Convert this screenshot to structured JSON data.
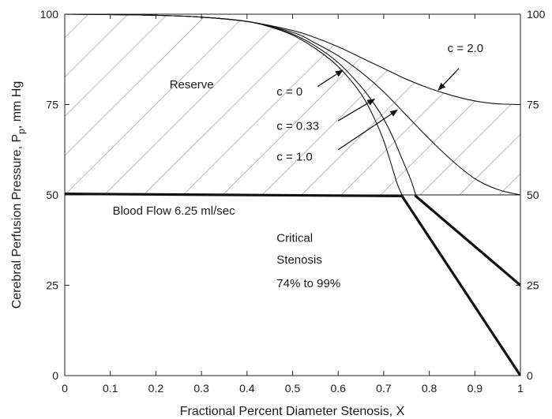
{
  "chart_data": {
    "type": "line",
    "title": "",
    "xlabel": "Fractional Percent Diameter Stenosis, X",
    "ylabel_main": "Cerebral Perfusion Pressure, P",
    "ylabel_sub": "p",
    "ylabel_tail": ", mm Hg",
    "xlim": [
      0,
      1
    ],
    "ylim": [
      0,
      100
    ],
    "xticks": [
      "0",
      "0.1",
      "0.2",
      "0.3",
      "0.4",
      "0.5",
      "0.6",
      "0.7",
      "0.8",
      "0.9",
      "1"
    ],
    "yticks_left": [
      "0",
      "25",
      "50",
      "75",
      "100"
    ],
    "yticks_right": [
      "0",
      "25",
      "50",
      "75",
      "100"
    ],
    "grid": false,
    "hatched_region": "between P = 50 and the c = 2.0 curve",
    "series": [
      {
        "name": "c = 0",
        "style": "thin",
        "x": [
          0,
          0.1,
          0.2,
          0.3,
          0.4,
          0.45,
          0.5,
          0.55,
          0.6,
          0.65,
          0.68,
          0.7,
          0.72,
          0.73,
          0.74
        ],
        "y": [
          100,
          99.9,
          99.7,
          99.2,
          98,
          96.5,
          94.2,
          90.5,
          85.5,
          78,
          71,
          65,
          57,
          53,
          50
        ]
      },
      {
        "name": "c = 0.33",
        "style": "thin",
        "x": [
          0,
          0.1,
          0.2,
          0.3,
          0.4,
          0.45,
          0.5,
          0.55,
          0.6,
          0.65,
          0.68,
          0.7,
          0.72,
          0.74,
          0.76,
          0.77
        ],
        "y": [
          100,
          99.9,
          99.7,
          99.2,
          98,
          96.6,
          94.5,
          91.2,
          86.6,
          80,
          75,
          71,
          66,
          60,
          54,
          50
        ]
      },
      {
        "name": "c = 1.0",
        "style": "thin",
        "x": [
          0,
          0.1,
          0.2,
          0.3,
          0.4,
          0.5,
          0.55,
          0.6,
          0.65,
          0.7,
          0.75,
          0.8,
          0.85,
          0.9,
          0.95,
          1.0
        ],
        "y": [
          100,
          99.9,
          99.7,
          99.2,
          98,
          95,
          92,
          88.5,
          84,
          78.5,
          72,
          65.5,
          59.5,
          54.5,
          51.5,
          50
        ]
      },
      {
        "name": "c = 2.0",
        "style": "thin",
        "x": [
          0,
          0.1,
          0.2,
          0.3,
          0.4,
          0.5,
          0.55,
          0.6,
          0.65,
          0.7,
          0.75,
          0.8,
          0.85,
          0.9,
          0.95,
          1.0
        ],
        "y": [
          100,
          99.9,
          99.7,
          99.2,
          98,
          95.5,
          93.5,
          91,
          88,
          85,
          82,
          79.5,
          77.5,
          76,
          75.2,
          75
        ]
      },
      {
        "name": "",
        "style": "reference",
        "x": [
          0,
          1
        ],
        "y": [
          50,
          50
        ]
      },
      {
        "name": "Blood Flow 6.25 ml/sec",
        "style": "thick",
        "x": [
          0,
          0.74
        ],
        "y": [
          50.3,
          49.7
        ]
      },
      {
        "name": "",
        "style": "thick",
        "x": [
          0.74,
          1.0
        ],
        "y": [
          49.7,
          0
        ]
      },
      {
        "name": "",
        "style": "thick",
        "x": [
          0.77,
          1.0
        ],
        "y": [
          49.7,
          25
        ]
      }
    ],
    "annotations": [
      {
        "id": "reserve",
        "text": "Reserve",
        "x": 0.23,
        "y": 79.5
      },
      {
        "id": "blood-flow",
        "text": "Blood Flow 6.25 ml/sec",
        "x": 0.105,
        "y": 44.5
      },
      {
        "id": "critical-1",
        "text": "Critical",
        "x": 0.465,
        "y": 37
      },
      {
        "id": "critical-2",
        "text": "Stenosis",
        "x": 0.465,
        "y": 31
      },
      {
        "id": "critical-3",
        "text": "74% to 99%",
        "x": 0.465,
        "y": 24.5
      },
      {
        "id": "c0",
        "text": "c = 0",
        "x": 0.465,
        "y": 77.5
      },
      {
        "id": "c033",
        "text": "c = 0.33",
        "x": 0.465,
        "y": 68
      },
      {
        "id": "c10",
        "text": "c = 1.0",
        "x": 0.465,
        "y": 59.5
      },
      {
        "id": "c20",
        "text": "c = 2.0",
        "x": 0.84,
        "y": 89.5
      }
    ],
    "arrows": [
      {
        "id": "arrow-c0",
        "from": [
          0.555,
          80
        ],
        "to": [
          0.61,
          84.5
        ]
      },
      {
        "id": "arrow-c033",
        "from": [
          0.6,
          70.5
        ],
        "to": [
          0.68,
          76.5
        ]
      },
      {
        "id": "arrow-c10",
        "from": [
          0.6,
          62.5
        ],
        "to": [
          0.73,
          73.5
        ]
      },
      {
        "id": "arrow-c20",
        "from": [
          0.865,
          85
        ],
        "to": [
          0.82,
          79
        ]
      }
    ]
  }
}
